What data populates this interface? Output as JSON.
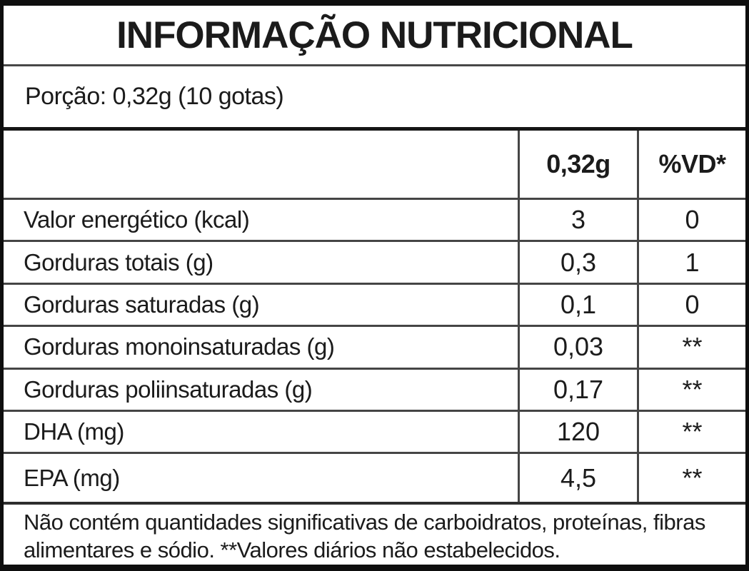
{
  "title": "INFORMAÇÃO NUTRICIONAL",
  "serving": "Porção: 0,32g (10 gotas)",
  "table": {
    "header": {
      "amount": "0,32g",
      "dv": "%VD*"
    },
    "rows": [
      {
        "label": "Valor energético (kcal)",
        "amount": "3",
        "dv": "0"
      },
      {
        "label": "Gorduras totais (g)",
        "amount": "0,3",
        "dv": "1"
      },
      {
        "label": "Gorduras saturadas (g)",
        "amount": "0,1",
        "dv": "0"
      },
      {
        "label": "Gorduras monoinsaturadas (g)",
        "amount": "0,03",
        "dv": "**"
      },
      {
        "label": "Gorduras poliinsaturadas (g)",
        "amount": "0,17",
        "dv": "**"
      },
      {
        "label": "DHA (mg)",
        "amount": "120",
        "dv": "**"
      },
      {
        "label": "EPA (mg)",
        "amount": "4,5",
        "dv": "**"
      }
    ]
  },
  "footnote": "Não contém quantidades significativas de carboidratos, proteínas, fibras alimentares e sódio. **Valores diários não estabelecidos.",
  "colors": {
    "background": "#ffffff",
    "outer_border": "#0e0e0e",
    "inner_lines": "#454545",
    "text": "#1b1b1b"
  }
}
